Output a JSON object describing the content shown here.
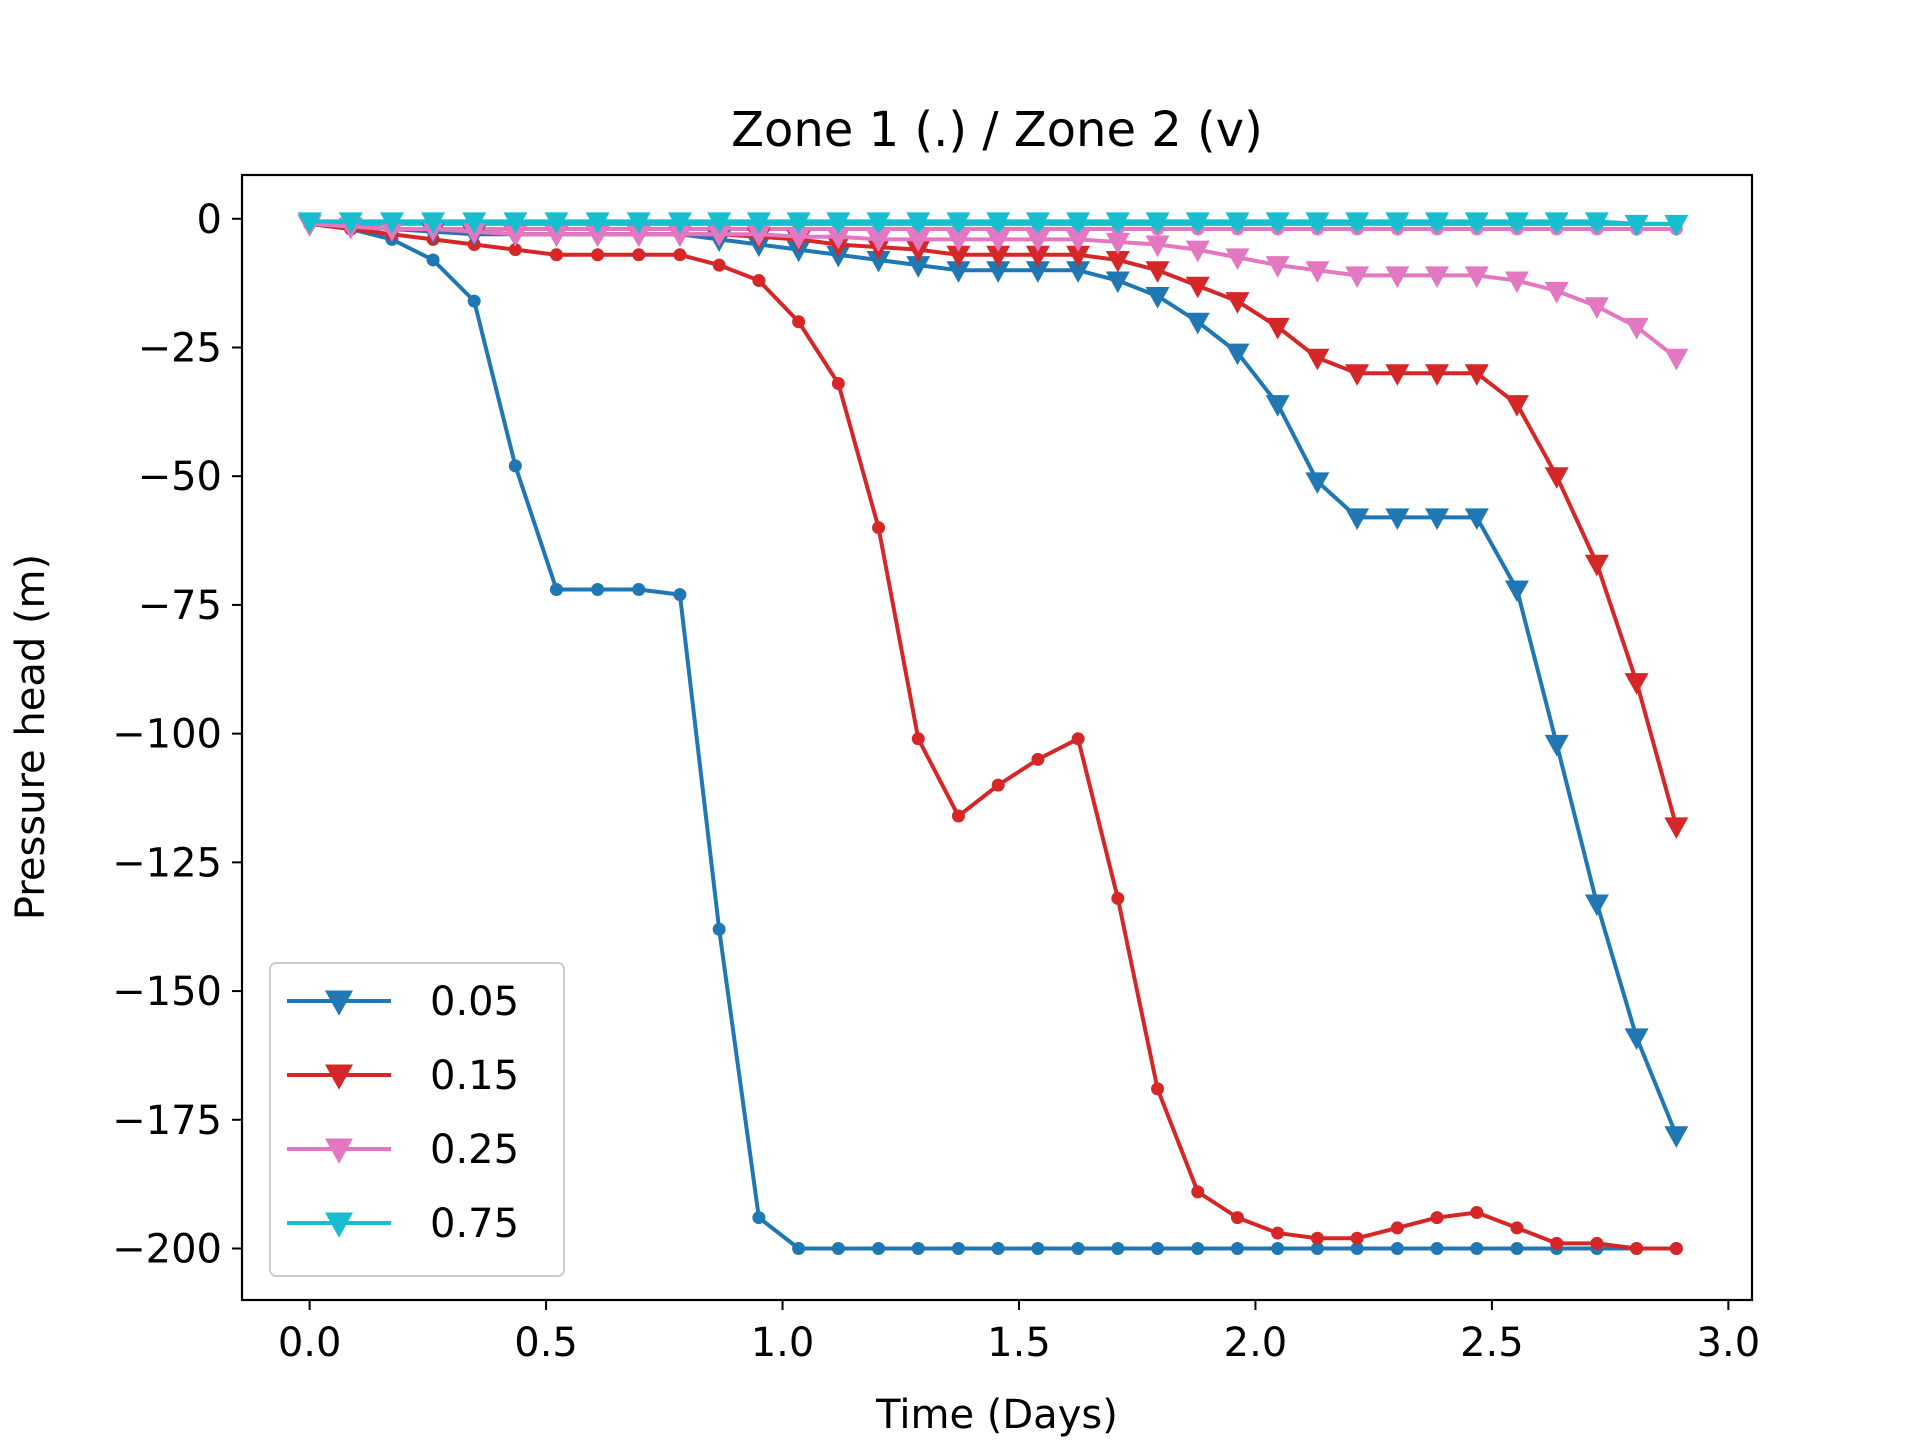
{
  "chart_data": {
    "type": "line",
    "title": "Zone 1 (.) / Zone 2 (v)",
    "xlabel": "Time (Days)",
    "ylabel": "Pressure head (m)",
    "xlim": [
      -0.143,
      3.05
    ],
    "ylim": [
      -210.0,
      8.5
    ],
    "xticks": [
      0.0,
      0.5,
      1.0,
      1.5,
      2.0,
      2.5,
      3.0
    ],
    "xtick_labels": [
      "0.0",
      "0.5",
      "1.0",
      "1.5",
      "2.0",
      "2.5",
      "3.0"
    ],
    "yticks": [
      0,
      -25,
      -50,
      -75,
      -100,
      -125,
      -150,
      -175,
      -200
    ],
    "ytick_labels": [
      "0",
      "−25",
      "−50",
      "−75",
      "−100",
      "−125",
      "−150",
      "−175",
      "−200"
    ],
    "grid": false,
    "legend_position": "lower-left",
    "legend": [
      "0.05",
      "0.15",
      "0.25",
      "0.75"
    ],
    "series": [
      {
        "name": "0.05",
        "zone": "Zone 1",
        "marker": "dot",
        "color": "#1f77b4",
        "x": [
          0.0,
          0.087,
          0.174,
          0.261,
          0.348,
          0.435,
          0.522,
          0.609,
          0.696,
          0.783,
          0.866,
          0.95,
          1.034,
          1.118,
          1.203,
          1.287,
          1.372,
          1.456,
          1.54,
          1.625,
          1.709,
          1.793,
          1.878,
          1.962,
          2.047,
          2.131,
          2.215,
          2.3,
          2.384,
          2.468,
          2.553,
          2.637,
          2.722,
          2.806,
          2.89
        ],
        "y": [
          -1,
          -2,
          -4,
          -8,
          -16,
          -48,
          -72,
          -72,
          -72,
          -73,
          -138,
          -194,
          -200,
          -200,
          -200,
          -200,
          -200,
          -200,
          -200,
          -200,
          -200,
          -200,
          -200,
          -200,
          -200,
          -200,
          -200,
          -200,
          -200,
          -200,
          -200,
          -200,
          -200,
          -200,
          -200
        ]
      },
      {
        "name": "0.15",
        "zone": "Zone 1",
        "marker": "dot",
        "color": "#d62728",
        "x": [
          0.0,
          0.087,
          0.174,
          0.261,
          0.348,
          0.435,
          0.522,
          0.609,
          0.696,
          0.783,
          0.866,
          0.95,
          1.034,
          1.118,
          1.203,
          1.287,
          1.372,
          1.456,
          1.54,
          1.625,
          1.709,
          1.793,
          1.878,
          1.962,
          2.047,
          2.131,
          2.215,
          2.3,
          2.384,
          2.468,
          2.553,
          2.637,
          2.722,
          2.806,
          2.89
        ],
        "y": [
          -1,
          -2,
          -3,
          -4,
          -5,
          -6,
          -7,
          -7,
          -7,
          -7,
          -9,
          -12,
          -20,
          -32,
          -60,
          -101,
          -116,
          -110,
          -105,
          -101,
          -132,
          -169,
          -189,
          -194,
          -197,
          -198,
          -198,
          -196,
          -194,
          -193,
          -196,
          -199,
          -199,
          -200,
          -200
        ]
      },
      {
        "name": "0.25",
        "zone": "Zone 1",
        "marker": "dot",
        "color": "#e377c2",
        "x": [
          0.0,
          0.087,
          0.174,
          0.261,
          0.348,
          0.435,
          0.522,
          0.609,
          0.696,
          0.783,
          0.866,
          0.95,
          1.034,
          1.118,
          1.203,
          1.287,
          1.372,
          1.456,
          1.54,
          1.625,
          1.709,
          1.793,
          1.878,
          1.962,
          2.047,
          2.131,
          2.215,
          2.3,
          2.384,
          2.468,
          2.553,
          2.637,
          2.722,
          2.806,
          2.89
        ],
        "y": [
          -1,
          -1.5,
          -2,
          -2,
          -2,
          -2,
          -2,
          -2,
          -2,
          -2,
          -2,
          -2,
          -2,
          -2,
          -2,
          -2,
          -2,
          -2,
          -2,
          -2,
          -2,
          -2,
          -2,
          -2,
          -2,
          -2,
          -2,
          -2,
          -2,
          -2,
          -2,
          -2,
          -2,
          -2,
          -2
        ]
      },
      {
        "name": "0.75",
        "zone": "Zone 1",
        "marker": "dot",
        "color": "#17becf",
        "x": [
          0.0,
          0.087,
          0.174,
          0.261,
          0.348,
          0.435,
          0.522,
          0.609,
          0.696,
          0.783,
          0.866,
          0.95,
          1.034,
          1.118,
          1.203,
          1.287,
          1.372,
          1.456,
          1.54,
          1.625,
          1.709,
          1.793,
          1.878,
          1.962,
          2.047,
          2.131,
          2.215,
          2.3,
          2.384,
          2.468,
          2.553,
          2.637,
          2.722,
          2.806,
          2.89
        ],
        "y": [
          -1,
          -1,
          -1,
          -1,
          -1,
          -1,
          -1,
          -1,
          -1,
          -1,
          -1,
          -1,
          -1,
          -1,
          -1,
          -1,
          -1,
          -1,
          -1,
          -1,
          -1,
          -1,
          -1,
          -1,
          -1,
          -1,
          -1,
          -1,
          -1,
          -1,
          -1,
          -1,
          -1,
          -1,
          -1
        ]
      },
      {
        "name": "0.05",
        "zone": "Zone 2",
        "marker": "triangle",
        "color": "#1f77b4",
        "x": [
          0.0,
          0.087,
          0.174,
          0.261,
          0.348,
          0.435,
          0.522,
          0.609,
          0.696,
          0.783,
          0.866,
          0.95,
          1.034,
          1.118,
          1.203,
          1.287,
          1.372,
          1.456,
          1.54,
          1.625,
          1.709,
          1.793,
          1.878,
          1.962,
          2.047,
          2.131,
          2.215,
          2.3,
          2.384,
          2.468,
          2.553,
          2.637,
          2.722,
          2.806,
          2.89
        ],
        "y": [
          -1,
          -1.5,
          -2,
          -2.5,
          -3,
          -3,
          -3,
          -3,
          -3,
          -3,
          -4,
          -5,
          -6,
          -7,
          -8,
          -9,
          -10,
          -10,
          -10,
          -10,
          -12,
          -15,
          -20,
          -26,
          -36,
          -51,
          -58,
          -58,
          -58,
          -58,
          -72,
          -102,
          -133,
          -159,
          -178
        ]
      },
      {
        "name": "0.15",
        "zone": "Zone 2",
        "marker": "triangle",
        "color": "#d62728",
        "x": [
          0.0,
          0.087,
          0.174,
          0.261,
          0.348,
          0.435,
          0.522,
          0.609,
          0.696,
          0.783,
          0.866,
          0.95,
          1.034,
          1.118,
          1.203,
          1.287,
          1.372,
          1.456,
          1.54,
          1.625,
          1.709,
          1.793,
          1.878,
          1.962,
          2.047,
          2.131,
          2.215,
          2.3,
          2.384,
          2.468,
          2.553,
          2.637,
          2.722,
          2.806,
          2.89
        ],
        "y": [
          -1,
          -1.5,
          -2,
          -2,
          -2.5,
          -3,
          -3,
          -3,
          -3,
          -3,
          -3,
          -3.5,
          -4,
          -5,
          -5.5,
          -6,
          -7,
          -7,
          -7,
          -7,
          -8,
          -10,
          -13,
          -16,
          -21,
          -27,
          -30,
          -30,
          -30,
          -30,
          -36,
          -50,
          -67,
          -90,
          -118
        ]
      },
      {
        "name": "0.25",
        "zone": "Zone 2",
        "marker": "triangle",
        "color": "#e377c2",
        "x": [
          0.0,
          0.087,
          0.174,
          0.261,
          0.348,
          0.435,
          0.522,
          0.609,
          0.696,
          0.783,
          0.866,
          0.95,
          1.034,
          1.118,
          1.203,
          1.287,
          1.372,
          1.456,
          1.54,
          1.625,
          1.709,
          1.793,
          1.878,
          1.962,
          2.047,
          2.131,
          2.215,
          2.3,
          2.384,
          2.468,
          2.553,
          2.637,
          2.722,
          2.806,
          2.89
        ],
        "y": [
          -1,
          -1.5,
          -2,
          -2,
          -2.5,
          -3,
          -3,
          -3,
          -3,
          -3,
          -3,
          -3,
          -3.5,
          -3.5,
          -4,
          -4,
          -4,
          -4,
          -4,
          -4,
          -4.5,
          -5,
          -6,
          -7.5,
          -9,
          -10,
          -11,
          -11,
          -11,
          -11,
          -12,
          -14,
          -17,
          -21,
          -27
        ]
      },
      {
        "name": "0.75",
        "zone": "Zone 2",
        "marker": "triangle",
        "color": "#17becf",
        "x": [
          0.0,
          0.087,
          0.174,
          0.261,
          0.348,
          0.435,
          0.522,
          0.609,
          0.696,
          0.783,
          0.866,
          0.95,
          1.034,
          1.118,
          1.203,
          1.287,
          1.372,
          1.456,
          1.54,
          1.625,
          1.709,
          1.793,
          1.878,
          1.962,
          2.047,
          2.131,
          2.215,
          2.3,
          2.384,
          2.468,
          2.553,
          2.637,
          2.722,
          2.806,
          2.89
        ],
        "y": [
          -0.5,
          -0.5,
          -0.5,
          -0.5,
          -0.5,
          -0.5,
          -0.5,
          -0.5,
          -0.5,
          -0.5,
          -0.5,
          -0.5,
          -0.5,
          -0.5,
          -0.5,
          -0.5,
          -0.5,
          -0.5,
          -0.5,
          -0.5,
          -0.5,
          -0.5,
          -0.5,
          -0.5,
          -0.5,
          -0.5,
          -0.5,
          -0.5,
          -0.5,
          -0.5,
          -0.5,
          -0.5,
          -0.5,
          -1,
          -1
        ]
      }
    ]
  }
}
